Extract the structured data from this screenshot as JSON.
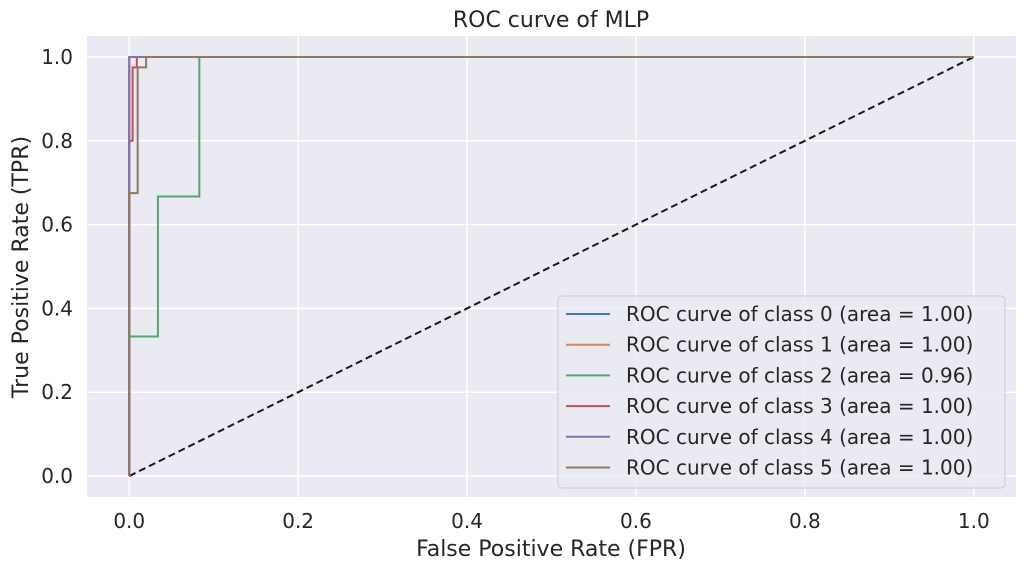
{
  "chart_data": {
    "type": "line",
    "title": "ROC curve of MLP",
    "xlabel": "False Positive Rate (FPR)",
    "ylabel": "True Positive Rate (TPR)",
    "xlim": [
      -0.05,
      1.05
    ],
    "ylim": [
      -0.05,
      1.05
    ],
    "xticks": [
      0.0,
      0.2,
      0.4,
      0.6,
      0.8,
      1.0
    ],
    "xtick_labels": [
      "0.0",
      "0.2",
      "0.4",
      "0.6",
      "0.8",
      "1.0"
    ],
    "yticks": [
      0.0,
      0.2,
      0.4,
      0.6,
      0.8,
      1.0
    ],
    "ytick_labels": [
      "0.0",
      "0.2",
      "0.4",
      "0.6",
      "0.8",
      "1.0"
    ],
    "grid": true,
    "legend_position": "lower-right",
    "series": [
      {
        "name": "ROC curve of class 0 (area = 1.00)",
        "color": "#4c72b0",
        "x": [
          0,
          0,
          1
        ],
        "y": [
          0,
          1,
          1
        ]
      },
      {
        "name": "ROC curve of class 1 (area = 1.00)",
        "color": "#dd8452",
        "x": [
          0,
          0,
          1
        ],
        "y": [
          0,
          1,
          1
        ]
      },
      {
        "name": "ROC curve of class 2 (area = 0.96)",
        "color": "#55a868",
        "x": [
          0,
          0,
          0.034,
          0.034,
          0.083,
          0.083,
          1
        ],
        "y": [
          0,
          0.333,
          0.333,
          0.667,
          0.667,
          1,
          1
        ]
      },
      {
        "name": "ROC curve of class 3 (area = 1.00)",
        "color": "#c44e52",
        "x": [
          0,
          0,
          0.004,
          0.004,
          0.009,
          0.009,
          1
        ],
        "y": [
          0,
          0.8,
          0.8,
          0.975,
          0.975,
          1,
          1
        ]
      },
      {
        "name": "ROC curve of class 4 (area = 1.00)",
        "color": "#8172b3",
        "x": [
          0,
          0,
          1
        ],
        "y": [
          0,
          1,
          1
        ]
      },
      {
        "name": "ROC curve of class 5 (area = 1.00)",
        "color": "#937860",
        "x": [
          0,
          0,
          0.01,
          0.01,
          0.02,
          0.02,
          1
        ],
        "y": [
          0,
          0.675,
          0.675,
          0.975,
          0.975,
          1,
          1
        ]
      }
    ],
    "reference_line": {
      "x": [
        0,
        1
      ],
      "y": [
        0,
        1
      ],
      "color": "#1a1a1a",
      "style": "dashed"
    }
  },
  "colors": {
    "plot_background": "#eaeaf2",
    "grid": "#ffffff",
    "legend_background": "#eaeaf2",
    "legend_border": "#cccccc"
  }
}
